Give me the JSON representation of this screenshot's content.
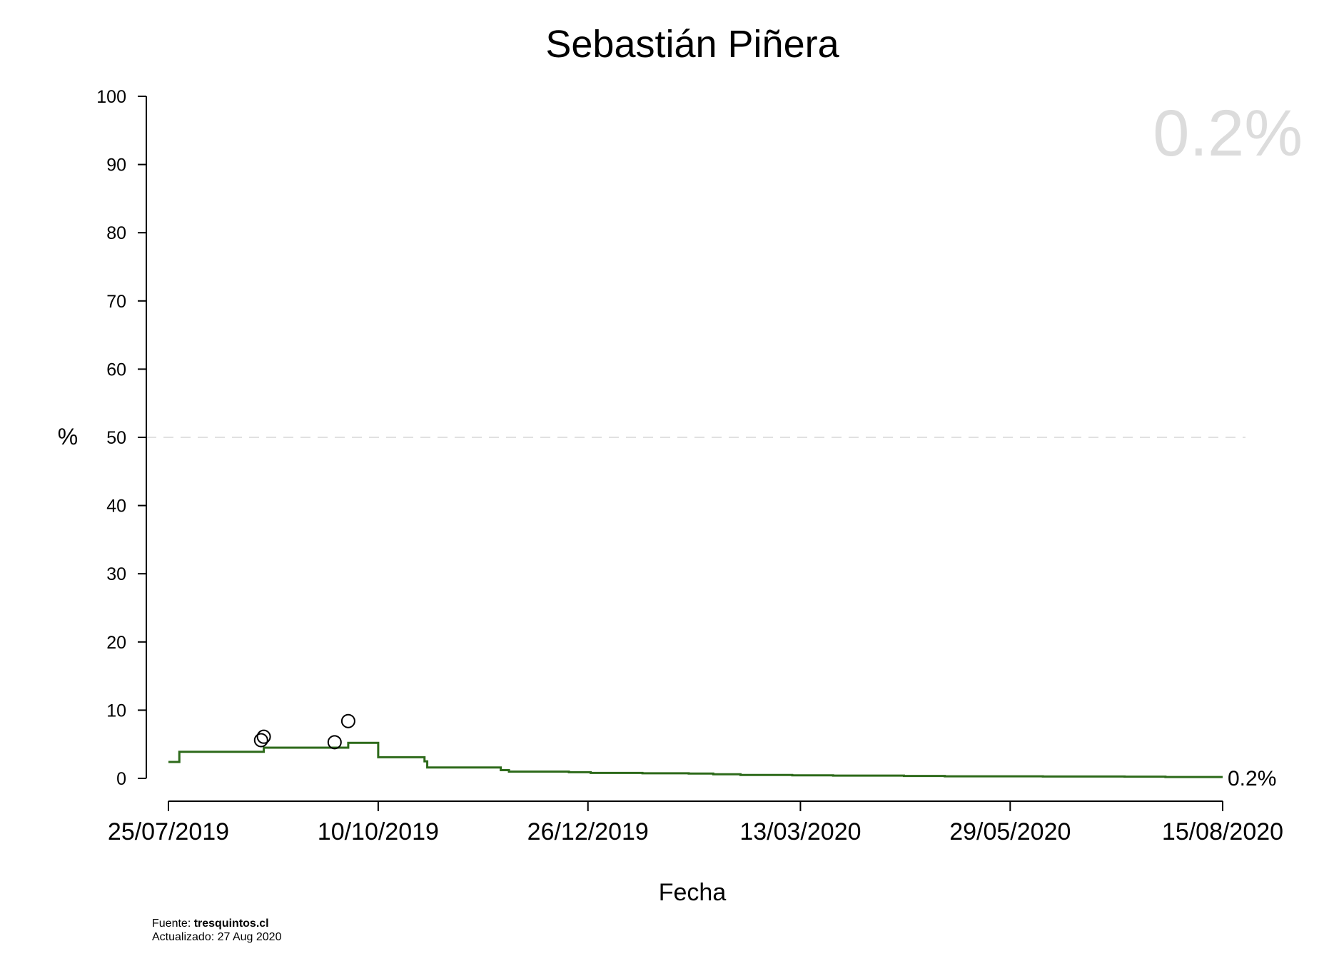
{
  "chart_data": {
    "type": "line",
    "title": "Sebastián Piñera",
    "xlabel": "Fecha",
    "ylabel": "%",
    "ylim": [
      0,
      100
    ],
    "yticks": [
      "0",
      "10",
      "20",
      "30",
      "40",
      "50",
      "60",
      "70",
      "80",
      "90",
      "100"
    ],
    "xlim": [
      "2019-07-25",
      "2020-08-15"
    ],
    "xticks": [
      "25/07/2019",
      "10/10/2019",
      "26/12/2019",
      "13/03/2020",
      "29/05/2020",
      "15/08/2020"
    ],
    "reference_line": {
      "y": 50,
      "style": "dashed"
    },
    "big_label": "0.2%",
    "end_label": "0.2%",
    "series": [
      {
        "kind": "step",
        "color": "#2d6a1a",
        "points": [
          {
            "x": "2019-07-25",
            "y": 2.4
          },
          {
            "x": "2019-07-29",
            "y": 3.9
          },
          {
            "x": "2019-08-29",
            "y": 4.5
          },
          {
            "x": "2019-09-29",
            "y": 5.2
          },
          {
            "x": "2019-10-10",
            "y": 3.1
          },
          {
            "x": "2019-10-27",
            "y": 2.5
          },
          {
            "x": "2019-10-28",
            "y": 1.6
          },
          {
            "x": "2019-11-24",
            "y": 1.2
          },
          {
            "x": "2019-11-27",
            "y": 1.0
          },
          {
            "x": "2019-12-19",
            "y": 0.9
          },
          {
            "x": "2019-12-27",
            "y": 0.8
          },
          {
            "x": "2020-01-15",
            "y": 0.75
          },
          {
            "x": "2020-02-01",
            "y": 0.7
          },
          {
            "x": "2020-02-10",
            "y": 0.6
          },
          {
            "x": "2020-02-20",
            "y": 0.5
          },
          {
            "x": "2020-03-10",
            "y": 0.45
          },
          {
            "x": "2020-03-25",
            "y": 0.4
          },
          {
            "x": "2020-04-20",
            "y": 0.35
          },
          {
            "x": "2020-05-05",
            "y": 0.3
          },
          {
            "x": "2020-06-10",
            "y": 0.28
          },
          {
            "x": "2020-07-10",
            "y": 0.25
          },
          {
            "x": "2020-07-25",
            "y": 0.2
          },
          {
            "x": "2020-08-15",
            "y": 0.2
          }
        ]
      },
      {
        "kind": "points",
        "points": [
          {
            "x": "2019-08-28",
            "y": 5.6
          },
          {
            "x": "2019-08-29",
            "y": 6.1
          },
          {
            "x": "2019-09-24",
            "y": 5.3
          },
          {
            "x": "2019-09-29",
            "y": 8.4
          }
        ]
      }
    ]
  },
  "footer": {
    "source_prefix": "Fuente: ",
    "source_site": "tresquintos.cl",
    "updated": "Actualizado: 27 Aug 2020"
  }
}
